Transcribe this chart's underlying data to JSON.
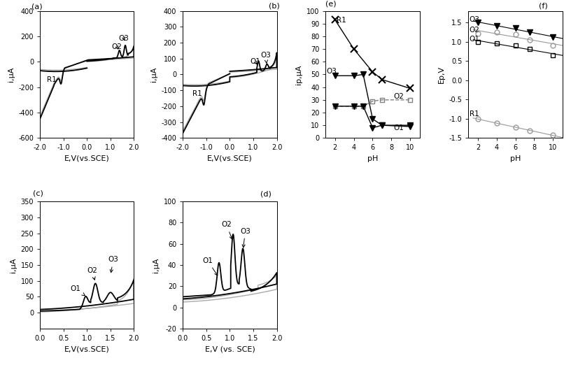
{
  "fig_width": 8.16,
  "fig_height": 5.22,
  "ax_a": {
    "xlim": [
      -2.0,
      2.0
    ],
    "ylim": [
      -600,
      400
    ],
    "xlabel": "E,V(vs.SCE)",
    "ylabel": "i,μA",
    "yticks": [
      -600,
      -400,
      -200,
      0,
      200,
      400
    ],
    "xticks": [
      -2.0,
      -1.0,
      0.0,
      1.0,
      2.0
    ]
  },
  "ax_b": {
    "xlim": [
      -2.0,
      2.0
    ],
    "ylim": [
      -400,
      400
    ],
    "xlabel": "E,V(vs.SCE)",
    "ylabel": "i,μA",
    "yticks": [
      -400,
      -300,
      -200,
      -100,
      0,
      100,
      200,
      300,
      400
    ],
    "xticks": [
      -2.0,
      -1.0,
      0.0,
      1.0,
      2.0
    ]
  },
  "ax_c": {
    "xlim": [
      0.0,
      2.0
    ],
    "ylim": [
      -50,
      350
    ],
    "xlabel": "E,V(vs.SCE)",
    "ylabel": "i,μA",
    "yticks": [
      0,
      50,
      100,
      150,
      200,
      250,
      300,
      350
    ],
    "xticks": [
      0.0,
      0.5,
      1.0,
      1.5,
      2.0
    ]
  },
  "ax_d": {
    "xlim": [
      0.0,
      2.0
    ],
    "ylim": [
      -20,
      100
    ],
    "xlabel": "E,V (vs. SCE)",
    "ylabel": "i,μA",
    "yticks": [
      -20,
      0,
      20,
      40,
      60,
      80,
      100
    ],
    "xticks": [
      0.0,
      0.5,
      1.0,
      1.5,
      2.0
    ]
  },
  "ax_e": {
    "xlim": [
      1,
      11
    ],
    "ylim": [
      0,
      100
    ],
    "xlabel": "pH",
    "ylabel": "ip,μA",
    "yticks": [
      0,
      10,
      20,
      30,
      40,
      50,
      60,
      70,
      80,
      90,
      100
    ],
    "xticks": [
      2,
      4,
      6,
      8,
      10
    ],
    "series_R1": {
      "x": [
        2,
        4,
        6,
        7,
        10
      ],
      "y": [
        93,
        70,
        52,
        46,
        39
      ]
    },
    "series_O3": {
      "x": [
        2,
        4,
        5,
        6,
        7,
        10
      ],
      "y": [
        49,
        49,
        50,
        15,
        10,
        10
      ]
    },
    "series_O2": {
      "x": [
        2,
        4,
        5,
        6,
        7,
        10
      ],
      "y": [
        25,
        25,
        25,
        29,
        30,
        30
      ]
    },
    "series_O1": {
      "x": [
        2,
        4,
        5,
        6,
        7,
        10
      ],
      "y": [
        25,
        25,
        25,
        8,
        10,
        9
      ]
    }
  },
  "ax_f": {
    "xlim": [
      1,
      11
    ],
    "ylim": [
      -1.5,
      1.8
    ],
    "xlabel": "pH",
    "ylabel": "Ep,V",
    "yticks": [
      -1.5,
      -1.0,
      -0.5,
      0.0,
      0.5,
      1.0,
      1.5
    ],
    "xticks": [
      2,
      4,
      6,
      8,
      10
    ],
    "series_O3": {
      "x": [
        2,
        4,
        6,
        7.5,
        10
      ],
      "y": [
        1.5,
        1.42,
        1.35,
        1.25,
        1.12
      ]
    },
    "series_O2": {
      "x": [
        2,
        4,
        6,
        7.5,
        10
      ],
      "y": [
        1.22,
        1.25,
        1.2,
        1.05,
        0.9
      ]
    },
    "series_O1": {
      "x": [
        2,
        4,
        6,
        7.5,
        10
      ],
      "y": [
        1.0,
        0.95,
        0.9,
        0.82,
        0.65
      ]
    },
    "series_R1": {
      "x": [
        2,
        4,
        6,
        7.5,
        10
      ],
      "y": [
        -1.0,
        -1.12,
        -1.22,
        -1.32,
        -1.42
      ]
    }
  }
}
